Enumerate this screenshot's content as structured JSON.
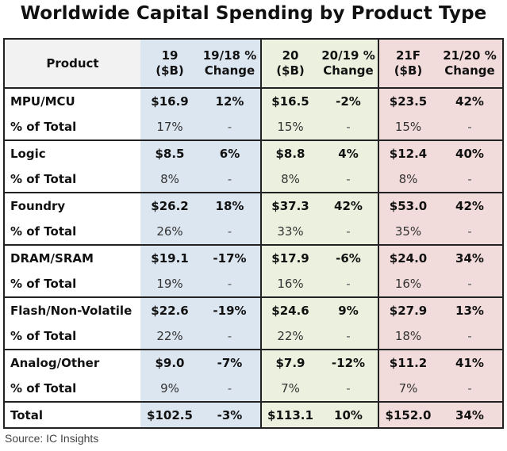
{
  "chart_data": {
    "type": "table",
    "title": "Worldwide Capital Spending by Product Type",
    "source": "Source: IC Insights",
    "header": {
      "product": "Product",
      "cols": [
        {
          "l1": "19",
          "l2": "($B)"
        },
        {
          "l1": "19/18 %",
          "l2": "Change"
        },
        {
          "l1": "20",
          "l2": "($B)"
        },
        {
          "l1": "20/19 %",
          "l2": "Change"
        },
        {
          "l1": "21F",
          "l2": "($B)"
        },
        {
          "l1": "21/20 %",
          "l2": "Change"
        }
      ]
    },
    "pct_label": "% of Total",
    "rows": [
      {
        "name": "MPU/MCU",
        "values": [
          "$16.9",
          "12%",
          "$16.5",
          "-2%",
          "$23.5",
          "42%"
        ],
        "pct": [
          "17%",
          "-",
          "15%",
          "-",
          "15%",
          "-"
        ]
      },
      {
        "name": "Logic",
        "values": [
          "$8.5",
          "6%",
          "$8.8",
          "4%",
          "$12.4",
          "40%"
        ],
        "pct": [
          "8%",
          "-",
          "8%",
          "-",
          "8%",
          "-"
        ]
      },
      {
        "name": "Foundry",
        "values": [
          "$26.2",
          "18%",
          "$37.3",
          "42%",
          "$53.0",
          "42%"
        ],
        "pct": [
          "26%",
          "-",
          "33%",
          "-",
          "35%",
          "-"
        ]
      },
      {
        "name": "DRAM/SRAM",
        "values": [
          "$19.1",
          "-17%",
          "$17.9",
          "-6%",
          "$24.0",
          "34%"
        ],
        "pct": [
          "19%",
          "-",
          "16%",
          "-",
          "16%",
          "-"
        ]
      },
      {
        "name": "Flash/Non-Volatile",
        "values": [
          "$22.6",
          "-19%",
          "$24.6",
          "9%",
          "$27.9",
          "13%"
        ],
        "pct": [
          "22%",
          "-",
          "22%",
          "-",
          "18%",
          "-"
        ]
      },
      {
        "name": "Analog/Other",
        "values": [
          "$9.0",
          "-7%",
          "$7.9",
          "-12%",
          "$11.2",
          "41%"
        ],
        "pct": [
          "9%",
          "-",
          "7%",
          "-",
          "7%",
          "-"
        ]
      }
    ],
    "total": {
      "name": "Total",
      "values": [
        "$102.5",
        "-3%",
        "$113.1",
        "10%",
        "$152.0",
        "34%"
      ]
    },
    "colors": {
      "band_19": "#dce6f1",
      "band_20": "#ebf1de",
      "band_21": "#f2dcdb",
      "header_product_bg": "#f2f2f2"
    }
  }
}
